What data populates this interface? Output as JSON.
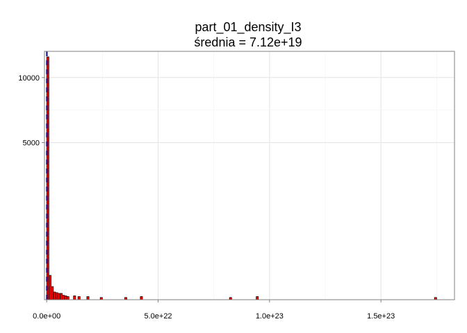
{
  "chart_data": {
    "type": "bar",
    "title": "part_01_density_I3",
    "subtitle": "średnia = 7.12e+19",
    "xlabel": "",
    "ylabel": "",
    "y_scale": "sqrt",
    "xlim": [
      -1e+21,
      1.83e+23
    ],
    "ylim": [
      0,
      12500
    ],
    "x_ticks": [
      0,
      5e+22,
      1e+23,
      1.5e+23
    ],
    "x_tick_labels": [
      "0.0e+00",
      "5.0e+22",
      "1.0e+23",
      "1.5e+23"
    ],
    "y_ticks": [
      5000,
      10000
    ],
    "y_tick_labels": [
      "5000",
      "10000"
    ],
    "grid": true,
    "bin_width": 1e+21,
    "bin_starts": [
      0,
      1e+21,
      2e+21,
      3e+21,
      4e+21,
      5e+21,
      6e+21,
      7e+21,
      8e+21,
      9e+21,
      1.2e+22,
      1.4e+22,
      1.8e+22,
      2.4e+22,
      3.5e+22,
      4.2e+22,
      8.2e+22,
      9.4e+22,
      1.74e+23
    ],
    "values": [
      11950,
      120,
      35,
      12,
      10,
      8,
      8,
      4,
      3,
      2,
      3,
      2,
      2,
      1,
      1,
      2,
      1,
      2,
      1
    ],
    "bar_color": "#ff0000",
    "bar_edge_color": "#000000",
    "mean_value": 7.12e+19,
    "mean_line_color": "#00008b"
  }
}
